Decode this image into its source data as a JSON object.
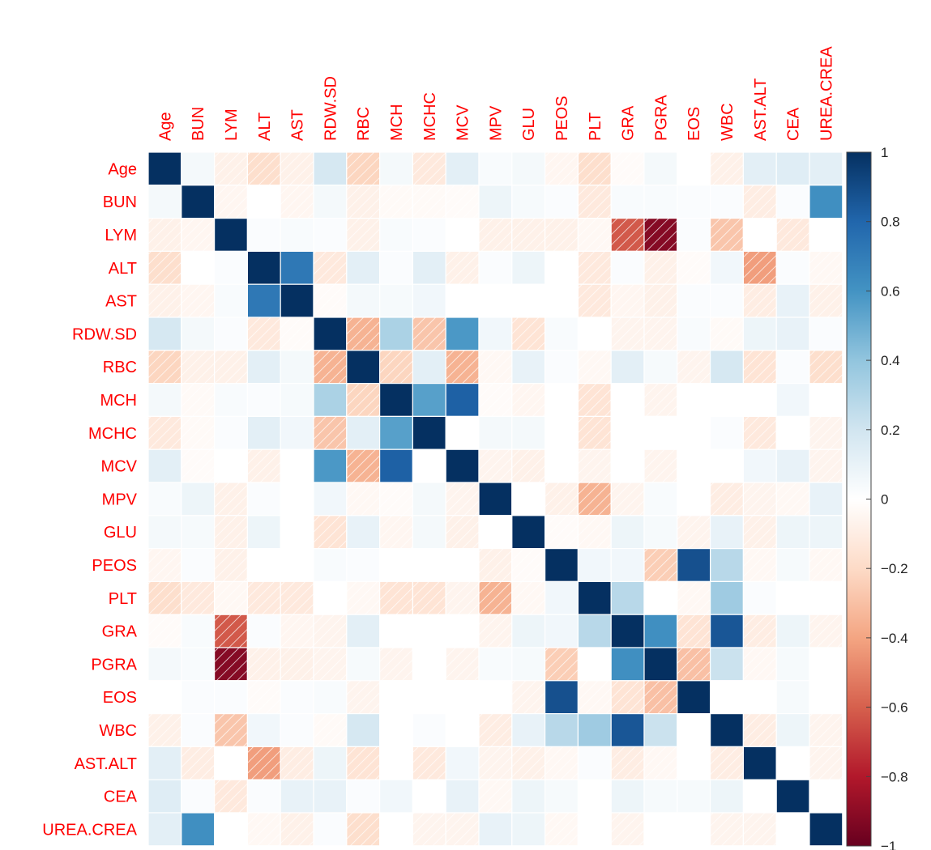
{
  "chart_data": {
    "type": "heatmap",
    "title": "",
    "variables": [
      "Age",
      "BUN",
      "LYM",
      "ALT",
      "AST",
      "RDW.SD",
      "RBC",
      "MCH",
      "MCHC",
      "MCV",
      "MPV",
      "GLU",
      "PEOS",
      "PLT",
      "GRA",
      "PGRA",
      "EOS",
      "WBC",
      "AST.ALT",
      "CEA",
      "UREA.CREA"
    ],
    "matrix": [
      [
        1,
        0.05,
        -0.08,
        -0.18,
        -0.08,
        0.18,
        -0.22,
        0.05,
        -0.12,
        0.12,
        0.03,
        0.05,
        -0.05,
        -0.18,
        -0.02,
        0.05,
        0.0,
        -0.08,
        0.12,
        0.14,
        0.12
      ],
      [
        0.05,
        1,
        -0.05,
        0.0,
        -0.05,
        0.05,
        -0.08,
        -0.03,
        -0.03,
        -0.02,
        0.08,
        0.04,
        0.02,
        -0.12,
        0.03,
        0.03,
        0.02,
        0.02,
        -0.1,
        0.02,
        0.62
      ],
      [
        -0.08,
        -0.05,
        1,
        0.02,
        0.03,
        0.02,
        -0.08,
        0.03,
        0.02,
        0.0,
        -0.08,
        -0.08,
        -0.08,
        -0.04,
        -0.62,
        -0.92,
        0.02,
        -0.28,
        0.0,
        -0.12,
        0.0
      ],
      [
        -0.18,
        0.0,
        0.02,
        1,
        0.72,
        -0.12,
        0.12,
        0.02,
        0.12,
        -0.08,
        0.02,
        0.08,
        0.0,
        -0.12,
        0.02,
        -0.08,
        -0.02,
        0.06,
        -0.42,
        0.02,
        -0.04
      ],
      [
        -0.08,
        -0.05,
        0.03,
        0.72,
        1,
        -0.02,
        0.05,
        0.04,
        0.06,
        0.0,
        0.0,
        0.0,
        0.0,
        -0.12,
        -0.05,
        -0.08,
        0.02,
        0.02,
        -0.1,
        0.1,
        -0.08
      ],
      [
        0.18,
        0.05,
        0.02,
        -0.12,
        -0.02,
        1,
        -0.35,
        0.32,
        -0.28,
        0.58,
        0.06,
        -0.15,
        0.03,
        0.0,
        -0.06,
        -0.06,
        0.03,
        -0.03,
        0.08,
        0.1,
        0.02
      ],
      [
        -0.22,
        -0.08,
        -0.08,
        0.12,
        0.05,
        -0.35,
        1,
        -0.22,
        0.12,
        -0.35,
        -0.04,
        0.1,
        0.02,
        -0.04,
        0.12,
        0.04,
        -0.06,
        0.18,
        -0.15,
        0.02,
        -0.18
      ],
      [
        0.05,
        -0.03,
        0.03,
        0.02,
        0.04,
        0.32,
        -0.22,
        1,
        0.55,
        0.82,
        -0.02,
        -0.05,
        0.0,
        -0.15,
        0.0,
        -0.06,
        0.0,
        0.0,
        0.0,
        0.06,
        0.0
      ],
      [
        -0.12,
        -0.03,
        0.02,
        0.12,
        0.06,
        -0.28,
        0.12,
        0.55,
        1,
        0.0,
        0.05,
        0.05,
        0.0,
        -0.15,
        0.0,
        0.0,
        0.0,
        0.02,
        -0.12,
        0.0,
        -0.06
      ],
      [
        0.12,
        -0.02,
        0.0,
        -0.08,
        0.0,
        0.58,
        -0.35,
        0.82,
        0.0,
        1,
        -0.06,
        -0.08,
        0.0,
        -0.06,
        0.0,
        -0.06,
        0.0,
        0.0,
        0.06,
        0.1,
        -0.06
      ],
      [
        0.03,
        0.08,
        -0.08,
        0.02,
        0.0,
        0.06,
        -0.04,
        -0.02,
        0.05,
        -0.06,
        1,
        0.0,
        -0.08,
        -0.35,
        -0.06,
        0.03,
        0.0,
        -0.1,
        -0.06,
        -0.04,
        0.1
      ],
      [
        0.05,
        0.04,
        -0.08,
        0.08,
        0.0,
        -0.15,
        0.1,
        -0.05,
        0.05,
        -0.08,
        0.0,
        1,
        -0.02,
        -0.04,
        0.08,
        0.04,
        -0.06,
        0.1,
        -0.08,
        0.08,
        0.08
      ],
      [
        -0.05,
        0.02,
        -0.08,
        0.0,
        0.0,
        0.03,
        0.02,
        0.0,
        0.0,
        0.0,
        -0.08,
        -0.02,
        1,
        0.06,
        0.06,
        -0.25,
        0.88,
        0.28,
        -0.04,
        0.04,
        -0.04
      ],
      [
        -0.18,
        -0.12,
        -0.04,
        -0.12,
        -0.12,
        0.0,
        -0.04,
        -0.15,
        -0.15,
        -0.06,
        -0.35,
        -0.04,
        0.06,
        1,
        0.28,
        0.0,
        -0.04,
        0.36,
        0.02,
        0.0,
        0.0
      ],
      [
        -0.02,
        0.03,
        -0.62,
        0.02,
        -0.05,
        -0.06,
        0.12,
        0.0,
        0.0,
        0.0,
        -0.06,
        0.08,
        0.06,
        0.28,
        1,
        0.62,
        -0.15,
        0.86,
        -0.1,
        0.08,
        -0.06
      ],
      [
        0.05,
        0.03,
        -0.92,
        -0.08,
        -0.08,
        -0.06,
        0.04,
        -0.06,
        0.0,
        -0.06,
        0.03,
        0.04,
        -0.25,
        0.0,
        0.62,
        1,
        -0.3,
        0.22,
        -0.04,
        0.04,
        0.0
      ],
      [
        0.0,
        0.02,
        0.02,
        -0.02,
        0.02,
        0.03,
        -0.06,
        0.0,
        0.0,
        0.0,
        0.0,
        -0.06,
        0.88,
        -0.04,
        -0.15,
        -0.3,
        1,
        0.0,
        0.0,
        0.04,
        0.0
      ],
      [
        -0.08,
        0.02,
        -0.28,
        0.06,
        0.02,
        -0.03,
        0.18,
        0.0,
        0.02,
        0.0,
        -0.1,
        0.1,
        0.28,
        0.36,
        0.86,
        0.22,
        0.0,
        1,
        -0.1,
        0.08,
        -0.06
      ],
      [
        0.12,
        -0.1,
        0.0,
        -0.42,
        -0.1,
        0.08,
        -0.15,
        0.0,
        -0.12,
        0.06,
        -0.06,
        -0.08,
        -0.04,
        0.02,
        -0.1,
        -0.04,
        0.0,
        -0.1,
        1,
        0.0,
        -0.06
      ],
      [
        0.14,
        0.02,
        -0.12,
        0.02,
        0.1,
        0.1,
        0.02,
        0.06,
        0.0,
        0.1,
        -0.04,
        0.08,
        0.04,
        0.0,
        0.08,
        0.04,
        0.04,
        0.08,
        0.0,
        1,
        0.0
      ],
      [
        0.12,
        0.62,
        0.0,
        -0.04,
        -0.08,
        0.02,
        -0.18,
        0.0,
        -0.06,
        -0.06,
        0.1,
        0.08,
        -0.04,
        0.0,
        -0.06,
        0.0,
        0.0,
        -0.06,
        -0.06,
        0.0,
        1
      ]
    ],
    "colorbar": {
      "range": [
        -1,
        1
      ],
      "ticks": [
        1,
        0.8,
        0.6,
        0.4,
        0.2,
        0,
        -0.2,
        -0.4,
        -0.6,
        -0.8,
        -1
      ],
      "tick_labels": [
        "1",
        "0.8",
        "0.6",
        "0.4",
        "0.2",
        "0",
        "−0.2",
        "−0.4",
        "−0.6",
        "−0.8",
        "−1"
      ]
    },
    "colors": {
      "label": "#ff0000",
      "high": "#053061",
      "low": "#67001f",
      "mid": "#ffffff"
    },
    "negative_cells_hatched": true
  }
}
